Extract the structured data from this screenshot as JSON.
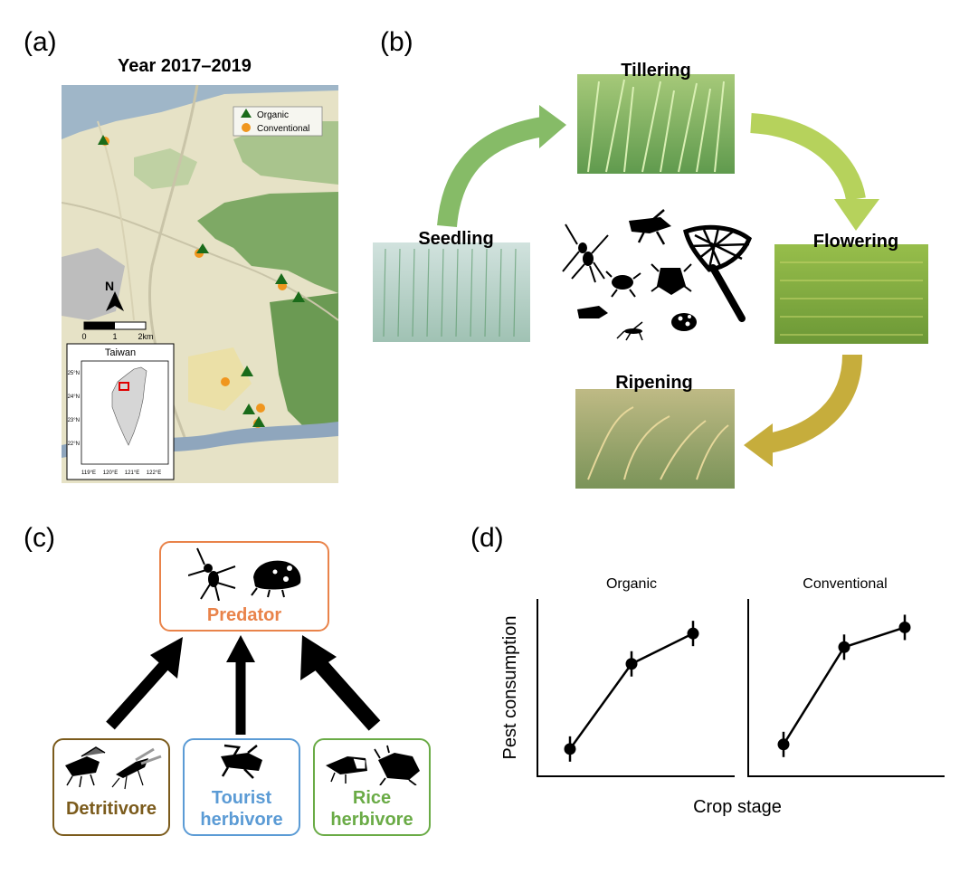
{
  "panels": {
    "a": "(a)",
    "b": "(b)",
    "c": "(c)",
    "d": "(d)"
  },
  "map": {
    "title": "Year 2017–2019",
    "legend": [
      "Organic",
      "Conventional"
    ],
    "scale_ticks": [
      "0",
      "1",
      "2km"
    ],
    "north": "N",
    "inset_title": "Taiwan",
    "inset_lat": [
      "25°N",
      "24°N",
      "23°N",
      "22°N"
    ],
    "inset_lon": [
      "119°E",
      "120°E",
      "121°E",
      "122°E"
    ],
    "colors": {
      "organic": "#1a6b1a",
      "conventional": "#f0961e",
      "river": "#8fa6bd",
      "forest": "#6b9a53"
    }
  },
  "cycle": {
    "stages": [
      "Tillering",
      "Flowering",
      "Ripening",
      "Seedling"
    ],
    "arrow_colors": [
      "#86bb67",
      "#b6d25c",
      "#c6ad3c"
    ]
  },
  "foodweb": {
    "predator": "Predator",
    "detritivore": "Detritivore",
    "tourist": [
      "Tourist",
      "herbivore"
    ],
    "rice": [
      "Rice",
      "herbivore"
    ],
    "colors": {
      "predator": "#e9834a",
      "detritivore": "#7b5b1c",
      "tourist": "#5b9bd5",
      "rice": "#6aab46"
    }
  },
  "chart_data": [
    {
      "type": "line",
      "title": "Organic",
      "ylabel": "Pest consumption",
      "x": [
        1,
        2,
        3
      ],
      "y": [
        0.12,
        0.68,
        0.88
      ]
    },
    {
      "type": "line",
      "title": "Conventional",
      "x": [
        1,
        2,
        3
      ],
      "y": [
        0.15,
        0.79,
        0.92
      ]
    }
  ],
  "chart_shared": {
    "xlabel": "Crop stage"
  }
}
